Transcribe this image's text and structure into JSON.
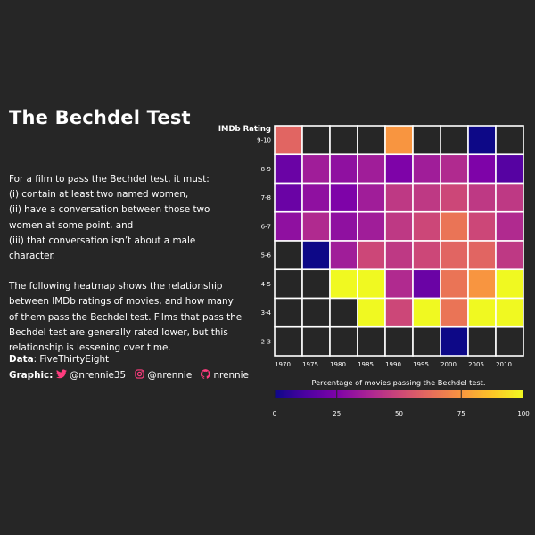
{
  "title": "The Bechdel Test",
  "description": {
    "intro": "For a film to pass the Bechdel test, it must:",
    "rules": [
      "(i) contain at least two named women,",
      "(ii) have a conversation between those two",
      "women at some point, and",
      "(iii) that conversation isn’t about a male character."
    ],
    "para2": [
      "The following heatmap shows the relationship",
      "between IMDb ratings of movies, and how many",
      "of them pass the Bechdel test. Films that pass the",
      "Bechdel test are generally rated lower, but this",
      "relationship is lessening over time."
    ]
  },
  "credits": {
    "data_label": "Data",
    "data_value": ": FiveThirtyEight",
    "graphic_label": "Graphic",
    "twitter_handle": "@nrennie35",
    "instagram_handle": "@nrennie",
    "github_handle": "nrennie",
    "twitter_icon": "twitter-icon",
    "instagram_icon": "instagram-icon",
    "github_icon": "github-icon",
    "icon_color": "#ff3c7e"
  },
  "chart_data": {
    "type": "heatmap",
    "title": "",
    "ylabel": "IMDb Rating",
    "xlabel": "",
    "x": [
      "1970",
      "1975",
      "1980",
      "1985",
      "1990",
      "1995",
      "2000",
      "2005",
      "2010"
    ],
    "y": [
      "9-10",
      "8-9",
      "7-8",
      "6-7",
      "5-6",
      "4-5",
      "3-4",
      "2-3"
    ],
    "values": [
      [
        60,
        null,
        null,
        null,
        75,
        null,
        null,
        0,
        null
      ],
      [
        20,
        35,
        30,
        35,
        25,
        35,
        40,
        25,
        15
      ],
      [
        20,
        30,
        25,
        35,
        45,
        45,
        50,
        45,
        45
      ],
      [
        30,
        40,
        30,
        35,
        45,
        50,
        65,
        50,
        40
      ],
      [
        null,
        0,
        35,
        50,
        45,
        50,
        60,
        60,
        45
      ],
      [
        null,
        null,
        100,
        100,
        40,
        20,
        65,
        75,
        100
      ],
      [
        null,
        null,
        null,
        100,
        50,
        100,
        65,
        100,
        100
      ],
      [
        null,
        null,
        null,
        null,
        null,
        null,
        0,
        null,
        null
      ]
    ],
    "missing_color": "#262626",
    "grid_color": "#ffffff",
    "legend": {
      "title": "Percentage of movies passing the Bechdel test.",
      "ticks": [
        "0",
        "25",
        "50",
        "75",
        "100"
      ],
      "range": [
        0,
        100
      ],
      "placement": "bottom",
      "colormap": "plasma"
    }
  }
}
